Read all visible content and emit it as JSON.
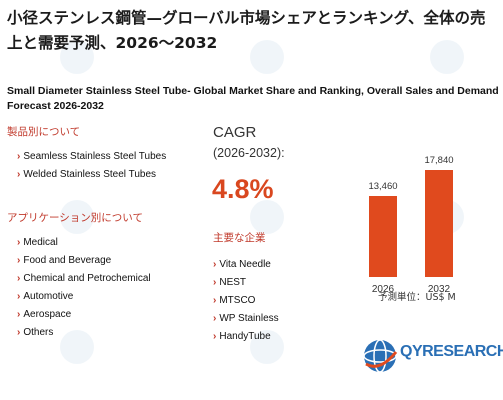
{
  "title_ja": "小径ステンレス鋼管—グローバル市場シェアとランキング、全体の売上と需要予測、2026～2032",
  "title_en": "Small Diameter Stainless Steel Tube- Global Market Share and Ranking, Overall Sales and Demand Forecast 2026-2032",
  "product_section": {
    "heading": "製品別について",
    "items": [
      "Seamless Stainless Steel Tubes",
      "Welded Stainless Steel Tubes"
    ]
  },
  "application_section": {
    "heading": "アプリケーション別について",
    "items": [
      "Medical",
      "Food and Beverage",
      "Chemical and Petrochemical",
      "Automotive",
      "Aerospace",
      "Others"
    ]
  },
  "cagr": {
    "label": "CAGR",
    "period": "(2026-2032):",
    "value": "4.8%"
  },
  "companies_section": {
    "heading": "主要な企業",
    "items": [
      "Vita Needle",
      "NEST",
      "MTSCO",
      "WP Stainless",
      "HandyTube"
    ]
  },
  "chart_data": {
    "type": "bar",
    "categories": [
      "2026",
      "2032"
    ],
    "values": [
      13460,
      17840
    ],
    "value_labels": [
      "13,460",
      "17,840"
    ],
    "ylim": [
      0,
      20000
    ],
    "bar_color": "#e04a1e"
  },
  "unit_label": "予測単位：US$ M",
  "logo": {
    "text": "QYRESEARCH"
  },
  "colors": {
    "accent": "#c0392b",
    "value": "#d9471f",
    "brand": "#2a6fb5"
  }
}
